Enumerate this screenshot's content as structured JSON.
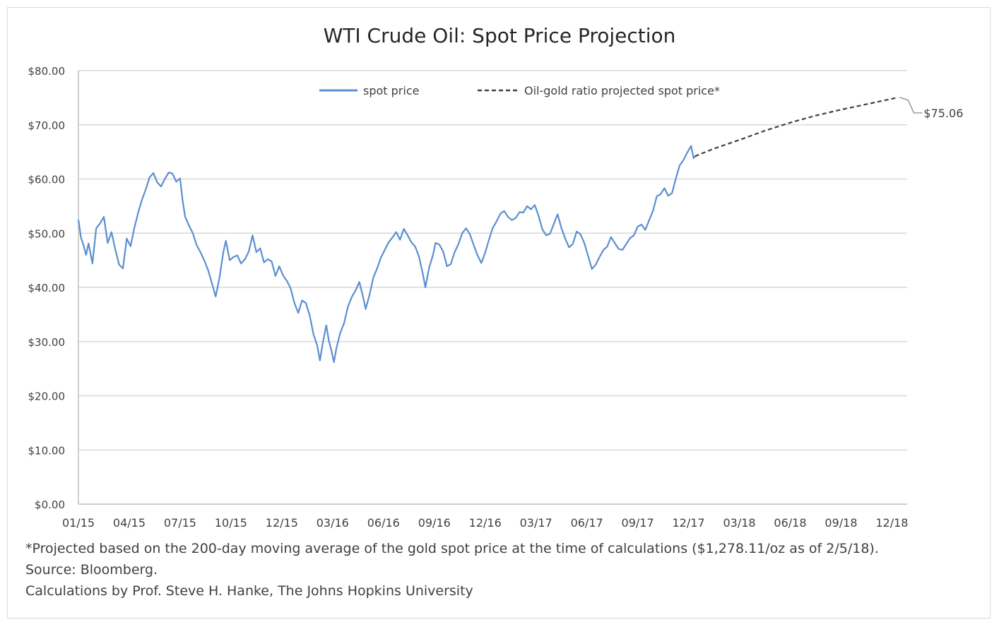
{
  "chart_data": {
    "type": "line",
    "title": "WTI Crude Oil: Spot Price Projection",
    "xlabel": "",
    "ylabel": "",
    "ylim": [
      0,
      80
    ],
    "y_ticks": [
      "$0.00",
      "$10.00",
      "$20.00",
      "$30.00",
      "$40.00",
      "$50.00",
      "$60.00",
      "$70.00",
      "$80.00"
    ],
    "x_ticks": [
      "01/15",
      "04/15",
      "07/15",
      "10/15",
      "12/15",
      "03/16",
      "06/16",
      "09/16",
      "12/16",
      "03/17",
      "06/17",
      "09/17",
      "12/17",
      "03/18",
      "06/18",
      "09/18",
      "12/18"
    ],
    "grid": "horizontal",
    "legend_position": "top",
    "series": [
      {
        "name": "spot price",
        "style": "solid",
        "color": "#5b8fd0",
        "points": [
          [
            0,
            52.5
          ],
          [
            0.1,
            49.2
          ],
          [
            0.2,
            47.8
          ],
          [
            0.3,
            46.0
          ],
          [
            0.4,
            48.1
          ],
          [
            0.55,
            44.4
          ],
          [
            0.7,
            50.9
          ],
          [
            0.85,
            51.8
          ],
          [
            1.0,
            53.0
          ],
          [
            1.15,
            48.2
          ],
          [
            1.3,
            50.2
          ],
          [
            1.45,
            47.0
          ],
          [
            1.6,
            44.2
          ],
          [
            1.75,
            43.5
          ],
          [
            1.9,
            49.0
          ],
          [
            2.05,
            47.6
          ],
          [
            2.2,
            51.0
          ],
          [
            2.35,
            53.8
          ],
          [
            2.5,
            56.2
          ],
          [
            2.65,
            58.1
          ],
          [
            2.8,
            60.3
          ],
          [
            2.95,
            61.1
          ],
          [
            3.1,
            59.4
          ],
          [
            3.25,
            58.6
          ],
          [
            3.4,
            60.0
          ],
          [
            3.55,
            61.2
          ],
          [
            3.7,
            61.0
          ],
          [
            3.85,
            59.5
          ],
          [
            4.0,
            60.1
          ],
          [
            4.1,
            56.0
          ],
          [
            4.2,
            53.0
          ],
          [
            4.35,
            51.4
          ],
          [
            4.5,
            50.0
          ],
          [
            4.65,
            47.8
          ],
          [
            4.8,
            46.5
          ],
          [
            4.95,
            45.0
          ],
          [
            5.1,
            43.2
          ],
          [
            5.25,
            40.8
          ],
          [
            5.4,
            38.3
          ],
          [
            5.55,
            41.8
          ],
          [
            5.7,
            46.5
          ],
          [
            5.8,
            48.6
          ],
          [
            5.95,
            45.0
          ],
          [
            6.1,
            45.6
          ],
          [
            6.25,
            45.9
          ],
          [
            6.4,
            44.4
          ],
          [
            6.55,
            45.2
          ],
          [
            6.7,
            46.6
          ],
          [
            6.85,
            49.6
          ],
          [
            7.0,
            46.5
          ],
          [
            7.15,
            47.2
          ],
          [
            7.3,
            44.6
          ],
          [
            7.45,
            45.2
          ],
          [
            7.6,
            44.8
          ],
          [
            7.75,
            42.1
          ],
          [
            7.9,
            43.9
          ],
          [
            8.05,
            42.2
          ],
          [
            8.2,
            41.2
          ],
          [
            8.35,
            39.8
          ],
          [
            8.5,
            37.1
          ],
          [
            8.65,
            35.3
          ],
          [
            8.8,
            37.6
          ],
          [
            8.95,
            37.1
          ],
          [
            9.1,
            34.8
          ],
          [
            9.25,
            31.3
          ],
          [
            9.4,
            29.2
          ],
          [
            9.5,
            26.5
          ],
          [
            9.6,
            29.4
          ],
          [
            9.75,
            33.0
          ],
          [
            9.85,
            30.2
          ],
          [
            9.95,
            28.4
          ],
          [
            10.05,
            26.2
          ],
          [
            10.15,
            28.8
          ],
          [
            10.3,
            31.6
          ],
          [
            10.45,
            33.4
          ],
          [
            10.6,
            36.4
          ],
          [
            10.75,
            38.2
          ],
          [
            10.9,
            39.4
          ],
          [
            11.05,
            41.0
          ],
          [
            11.2,
            38.2
          ],
          [
            11.3,
            36.0
          ],
          [
            11.45,
            38.6
          ],
          [
            11.6,
            41.8
          ],
          [
            11.75,
            43.5
          ],
          [
            11.9,
            45.5
          ],
          [
            12.05,
            46.9
          ],
          [
            12.2,
            48.3
          ],
          [
            12.35,
            49.2
          ],
          [
            12.5,
            50.2
          ],
          [
            12.65,
            48.8
          ],
          [
            12.8,
            50.8
          ],
          [
            12.95,
            49.6
          ],
          [
            13.1,
            48.3
          ],
          [
            13.25,
            47.5
          ],
          [
            13.4,
            45.6
          ],
          [
            13.55,
            42.4
          ],
          [
            13.65,
            40.0
          ],
          [
            13.8,
            43.7
          ],
          [
            13.95,
            46.0
          ],
          [
            14.05,
            48.2
          ],
          [
            14.2,
            47.9
          ],
          [
            14.35,
            46.6
          ],
          [
            14.5,
            43.9
          ],
          [
            14.65,
            44.3
          ],
          [
            14.8,
            46.5
          ],
          [
            14.95,
            48.0
          ],
          [
            15.1,
            50.0
          ],
          [
            15.25,
            50.9
          ],
          [
            15.4,
            49.8
          ],
          [
            15.55,
            47.8
          ],
          [
            15.7,
            45.9
          ],
          [
            15.85,
            44.5
          ],
          [
            16.0,
            46.4
          ],
          [
            16.15,
            48.8
          ],
          [
            16.3,
            51.0
          ],
          [
            16.45,
            52.2
          ],
          [
            16.6,
            53.6
          ],
          [
            16.75,
            54.1
          ],
          [
            16.9,
            53.0
          ],
          [
            17.05,
            52.4
          ],
          [
            17.2,
            52.8
          ],
          [
            17.35,
            53.9
          ],
          [
            17.5,
            53.8
          ],
          [
            17.65,
            55.0
          ],
          [
            17.8,
            54.4
          ],
          [
            17.95,
            55.2
          ],
          [
            18.1,
            53.2
          ],
          [
            18.25,
            50.7
          ],
          [
            18.4,
            49.6
          ],
          [
            18.55,
            49.9
          ],
          [
            18.7,
            51.7
          ],
          [
            18.85,
            53.5
          ],
          [
            19.0,
            50.9
          ],
          [
            19.15,
            49.0
          ],
          [
            19.3,
            47.4
          ],
          [
            19.45,
            48.0
          ],
          [
            19.6,
            50.3
          ],
          [
            19.75,
            49.8
          ],
          [
            19.9,
            48.2
          ],
          [
            20.05,
            45.8
          ],
          [
            20.2,
            43.4
          ],
          [
            20.35,
            44.2
          ],
          [
            20.5,
            45.6
          ],
          [
            20.65,
            46.9
          ],
          [
            20.8,
            47.5
          ],
          [
            20.95,
            49.3
          ],
          [
            21.1,
            48.2
          ],
          [
            21.25,
            47.1
          ],
          [
            21.4,
            46.9
          ],
          [
            21.55,
            48.0
          ],
          [
            21.7,
            49.1
          ],
          [
            21.85,
            49.6
          ],
          [
            22.0,
            51.2
          ],
          [
            22.15,
            51.6
          ],
          [
            22.3,
            50.6
          ],
          [
            22.45,
            52.4
          ],
          [
            22.6,
            54.1
          ],
          [
            22.75,
            56.8
          ],
          [
            22.9,
            57.2
          ],
          [
            23.05,
            58.3
          ],
          [
            23.2,
            56.9
          ],
          [
            23.35,
            57.4
          ],
          [
            23.5,
            60.1
          ],
          [
            23.65,
            62.5
          ],
          [
            23.8,
            63.5
          ],
          [
            23.95,
            64.9
          ],
          [
            24.1,
            66.1
          ],
          [
            24.2,
            63.8
          ],
          [
            24.25,
            64.2
          ]
        ]
      },
      {
        "name": "Oil-gold ratio projected spot price*",
        "style": "dashed",
        "color": "#404040",
        "points": [
          [
            24.25,
            64.2
          ],
          [
            25.0,
            65.6
          ],
          [
            26.0,
            67.2
          ],
          [
            27.0,
            68.9
          ],
          [
            28.0,
            70.4
          ],
          [
            29.0,
            71.7
          ],
          [
            30.0,
            72.8
          ],
          [
            31.0,
            73.8
          ],
          [
            32.0,
            74.8
          ],
          [
            32.25,
            75.06
          ]
        ]
      }
    ],
    "annotations": [
      {
        "text": "$75.06",
        "target_x": 32.25,
        "target_y": 75.06
      }
    ]
  },
  "footnotes": [
    "*Projected based on the 200-day moving average of the gold spot price at the time of calculations ($1,278.11/oz as of 2/5/18).",
    "Source: Bloomberg.",
    "Calculations by Prof. Steve H. Hanke, The Johns Hopkins University"
  ]
}
